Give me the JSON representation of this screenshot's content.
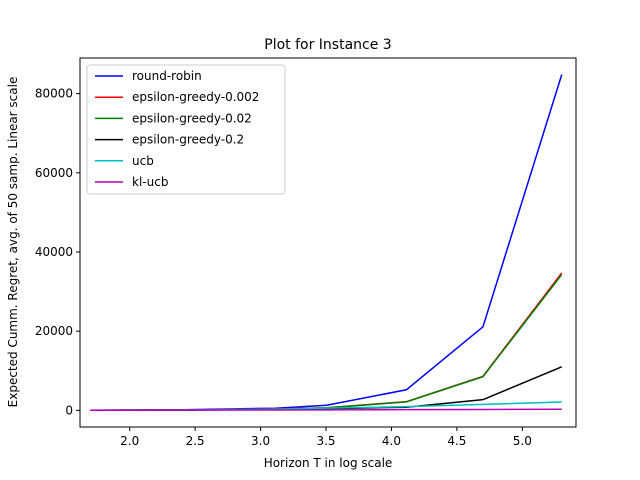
{
  "chart_data": {
    "type": "line",
    "title": "Plot for Instance 3",
    "xlabel": "Horizon T in log scale",
    "ylabel": "Expected Cumm. Regret, avg. of 50 samp. Linear scale",
    "xlim": [
      1.62,
      5.41
    ],
    "ylim": [
      -4200,
      89000
    ],
    "xticks": [
      2.0,
      2.5,
      3.0,
      3.5,
      4.0,
      4.5,
      5.0
    ],
    "xtick_labels": [
      "2.0",
      "2.5",
      "3.0",
      "3.5",
      "4.0",
      "4.5",
      "5.0"
    ],
    "yticks": [
      0,
      20000,
      40000,
      60000,
      80000
    ],
    "ytick_labels": [
      "0",
      "20000",
      "40000",
      "60000",
      "80000"
    ],
    "grid": false,
    "legend_position": "top-left",
    "x": [
      1.699,
      2.398,
      3.114,
      3.505,
      4.114,
      4.699,
      5.301
    ],
    "series": [
      {
        "name": "round-robin",
        "color": "#0000ff",
        "values": [
          40,
          160,
          550,
          1300,
          5200,
          21100,
          84800
        ]
      },
      {
        "name": "epsilon-greedy-0.002",
        "color": "#ff0000",
        "values": [
          25,
          110,
          330,
          650,
          2200,
          8600,
          34700
        ]
      },
      {
        "name": "epsilon-greedy-0.02",
        "color": "#008000",
        "values": [
          25,
          100,
          300,
          620,
          2150,
          8500,
          34300
        ]
      },
      {
        "name": "epsilon-greedy-0.2",
        "color": "#000000",
        "values": [
          20,
          70,
          220,
          420,
          800,
          2700,
          11000
        ]
      },
      {
        "name": "ucb",
        "color": "#00bfbf",
        "values": [
          30,
          110,
          290,
          560,
          950,
          1500,
          2100
        ]
      },
      {
        "name": "kl-ucb",
        "color": "#bf00bf",
        "values": [
          20,
          50,
          90,
          130,
          180,
          220,
          270
        ]
      }
    ]
  }
}
